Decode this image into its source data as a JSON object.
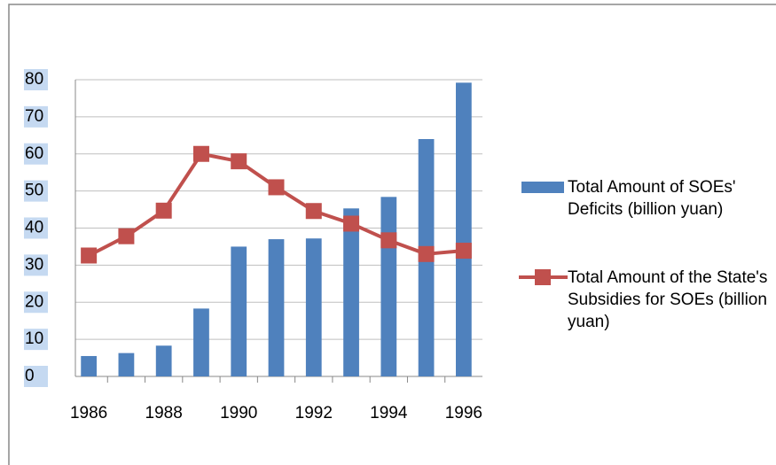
{
  "chart_data": {
    "type": "bar-line",
    "categories": [
      "1986",
      null,
      "1988",
      null,
      "1990",
      null,
      "1992",
      null,
      "1994",
      null,
      "1996"
    ],
    "series": [
      {
        "name": "Total Amount of SOEs' Deficits (billion yuan)",
        "type": "bar",
        "color": "#4f81bd",
        "values": [
          5.5,
          6.3,
          8.3,
          18.3,
          35,
          37,
          37.2,
          45.3,
          48.4,
          64,
          79.2
        ]
      },
      {
        "name": "Total Amount of the State's Subsidies for SOEs (billion yuan)",
        "type": "line",
        "color": "#c0504d",
        "values": [
          32.6,
          37.8,
          44.7,
          60,
          58,
          51,
          44.6,
          41.2,
          36.7,
          33,
          33.9
        ]
      }
    ],
    "ylim": [
      0,
      80
    ],
    "yticks": [
      0,
      10,
      20,
      30,
      40,
      50,
      60,
      70,
      80
    ],
    "grid": true,
    "legend": "right"
  }
}
